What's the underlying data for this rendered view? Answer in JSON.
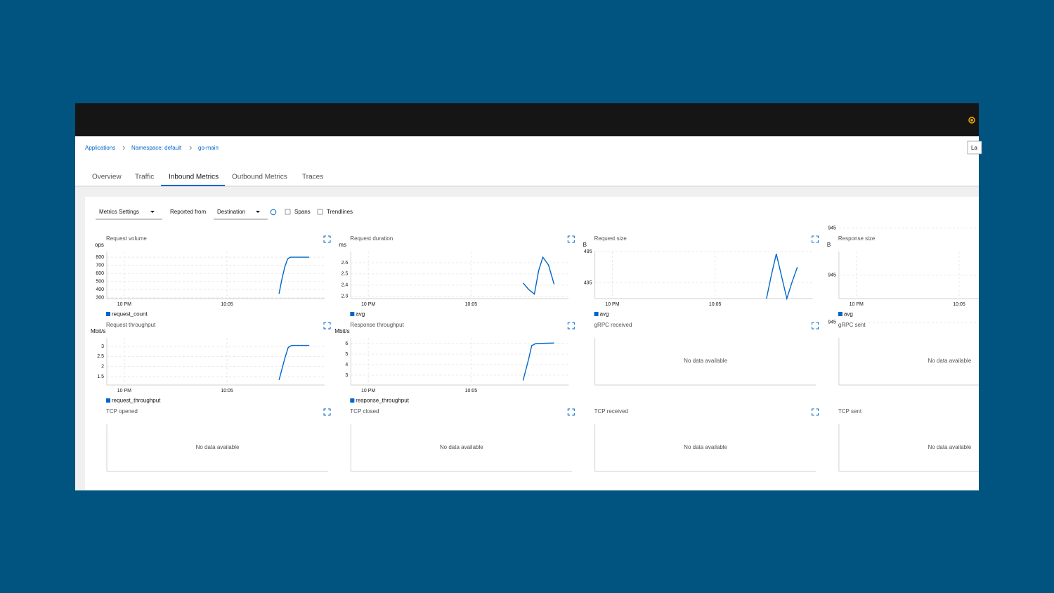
{
  "breadcrumb": [
    "Applications",
    "Namespace: default",
    "go-main"
  ],
  "time_range_fragment": "La",
  "tabs": [
    "Overview",
    "Traffic",
    "Inbound Metrics",
    "Outbound Metrics",
    "Traces"
  ],
  "active_tab": 2,
  "toolbar": {
    "metrics_settings": "Metrics Settings",
    "reported_from_label": "Reported from",
    "reported_from": "Destination",
    "spans": "Spans",
    "trendlines": "Trendlines"
  },
  "no_data_text": "No data available",
  "charts": [
    {
      "type": "line",
      "title": "Request volume",
      "unit": "ops",
      "xlim": [
        -0.85,
        9.75
      ],
      "xticks": [
        {
          "value": 0,
          "label": "10 PM"
        },
        {
          "value": 5,
          "label": "10:05"
        }
      ],
      "ylim": [
        290,
        870
      ],
      "yticks": [
        300,
        400,
        500,
        600,
        700,
        800
      ],
      "series": [
        {
          "name": "request_count",
          "color": "#0066cc",
          "x": [
            7.53,
            7.67,
            7.81,
            7.95,
            8.08,
            9.0
          ],
          "values": [
            350,
            530,
            680,
            780,
            800,
            800
          ]
        }
      ]
    },
    {
      "type": "line",
      "title": "Request duration",
      "unit": "ms",
      "xlim": [
        -0.85,
        9.75
      ],
      "xticks": [
        {
          "value": 0,
          "label": "10 PM"
        },
        {
          "value": 5,
          "label": "10:05"
        }
      ],
      "ylim": [
        2.28,
        2.7
      ],
      "yticks": [
        2.3,
        2.4,
        2.5,
        2.6
      ],
      "series": [
        {
          "name": "avg",
          "color": "#0066cc",
          "x": [
            7.53,
            7.81,
            8.08,
            8.29,
            8.49,
            8.77,
            9.04
          ],
          "values": [
            2.42,
            2.36,
            2.32,
            2.53,
            2.65,
            2.58,
            2.41
          ]
        }
      ]
    },
    {
      "type": "line",
      "title": "Request size",
      "unit": "B",
      "xlim": [
        -0.85,
        9.75
      ],
      "xticks": [
        {
          "value": 0,
          "label": "10 PM"
        },
        {
          "value": 5,
          "label": "10:05"
        }
      ],
      "ylim": [
        494.8,
        495.4
      ],
      "yticks": [
        {
          "value": 495.4,
          "label": "495"
        },
        {
          "value": 495.0,
          "label": "495"
        }
      ],
      "series": [
        {
          "name": "avg",
          "color": "#0066cc",
          "x": [
            7.5,
            7.74,
            7.98,
            8.22,
            8.49,
            8.73,
            9.0
          ],
          "values": [
            494.8,
            495.1,
            495.37,
            495.1,
            494.8,
            495.0,
            495.2
          ]
        }
      ]
    },
    {
      "type": "line",
      "title": "Response size",
      "unit": "B",
      "xlim": [
        -0.85,
        9.75
      ],
      "xticks": [
        {
          "value": 0,
          "label": "10 PM"
        },
        {
          "value": 5,
          "label": "10:05"
        }
      ],
      "ylim": [
        944.9,
        945.1
      ],
      "yticks": [
        {
          "value": 945.2,
          "label": "945"
        },
        {
          "value": 945.0,
          "label": "945"
        },
        {
          "value": 944.8,
          "label": "945"
        }
      ],
      "series": [
        {
          "name": "avg",
          "color": "#0066cc",
          "x": [],
          "values": []
        }
      ]
    },
    {
      "type": "line",
      "title": "Request throughput",
      "unit": "Mbit/s",
      "xlim": [
        -0.85,
        9.75
      ],
      "xticks": [
        {
          "value": 0,
          "label": "10 PM"
        },
        {
          "value": 5,
          "label": "10:05"
        }
      ],
      "ylim": [
        1.08,
        3.42
      ],
      "yticks": [
        1.5,
        2,
        2.5,
        3
      ],
      "series": [
        {
          "name": "request_throughput",
          "color": "#0066cc",
          "x": [
            7.53,
            7.81,
            7.98,
            8.15,
            9.0
          ],
          "values": [
            1.33,
            2.4,
            2.95,
            3.05,
            3.05
          ]
        }
      ]
    },
    {
      "type": "line",
      "title": "Response throughput",
      "unit": "Mbit/s",
      "xlim": [
        -0.85,
        9.75
      ],
      "xticks": [
        {
          "value": 0,
          "label": "10 PM"
        },
        {
          "value": 5,
          "label": "10:05"
        }
      ],
      "ylim": [
        2.07,
        6.53
      ],
      "yticks": [
        3,
        4,
        5,
        6
      ],
      "series": [
        {
          "name": "response_throughput",
          "color": "#0066cc",
          "x": [
            7.53,
            7.81,
            7.95,
            8.15,
            9.04
          ],
          "values": [
            2.5,
            4.6,
            5.8,
            6.0,
            6.05
          ]
        }
      ]
    },
    {
      "title": "gRPC received"
    },
    {
      "title": "gRPC sent"
    },
    {
      "title": "TCP opened"
    },
    {
      "title": "TCP closed"
    },
    {
      "title": "TCP received"
    },
    {
      "title": "TCP sent"
    }
  ]
}
